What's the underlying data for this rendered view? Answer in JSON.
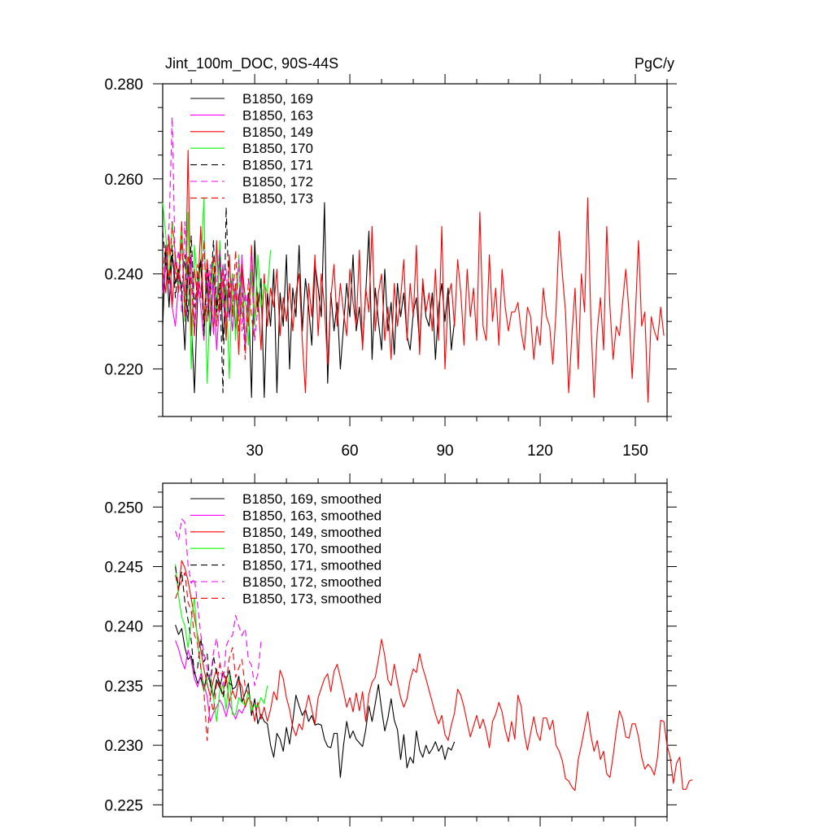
{
  "chart_data": [
    {
      "type": "line",
      "title": "Jint_100m_DOC, 90S-44S",
      "units": "PgC/y",
      "xlabel": "",
      "ylabel": "",
      "xlim": [
        1,
        160
      ],
      "ylim": [
        0.21,
        0.28
      ],
      "xticks": [
        30,
        60,
        90,
        120,
        150
      ],
      "xtick_labels": [
        "30",
        "60",
        "90",
        "120",
        "150"
      ],
      "yticks": [
        0.22,
        0.24,
        0.26,
        0.28
      ],
      "ytick_labels": [
        "0.220",
        "0.240",
        "0.260",
        "0.280"
      ],
      "legend_position": "top-left",
      "series": [
        {
          "name": "B1850, 169",
          "color": "#000000",
          "dash": "solid",
          "x_start": 1,
          "values": [
            0.229,
            0.246,
            0.233,
            0.244,
            0.238,
            0.241,
            0.236,
            0.224,
            0.242,
            0.231,
            0.215,
            0.235,
            0.243,
            0.229,
            0.238,
            0.227,
            0.24,
            0.233,
            0.244,
            0.226,
            0.237,
            0.231,
            0.24,
            0.228,
            0.235,
            0.242,
            0.224,
            0.236,
            0.214,
            0.247,
            0.232,
            0.239,
            0.214,
            0.236,
            0.229,
            0.241,
            0.215,
            0.236,
            0.229,
            0.244,
            0.22,
            0.237,
            0.231,
            0.246,
            0.228,
            0.239,
            0.233,
            0.225,
            0.242,
            0.237,
            0.231,
            0.255,
            0.217,
            0.236,
            0.228,
            0.234,
            0.22,
            0.229,
            0.238,
            0.231,
            0.244,
            0.228,
            0.233,
            0.225,
            0.236,
            0.249,
            0.222,
            0.237,
            0.23,
            0.224,
            0.241,
            0.228,
            0.234,
            0.223,
            0.238,
            0.231,
            0.236,
            0.227,
            0.224,
            0.232,
            0.235,
            0.225,
            0.238,
            0.231,
            0.229,
            0.236,
            0.222,
            0.233,
            0.238,
            0.23,
            0.237,
            0.224,
            0.23
          ]
        },
        {
          "name": "B1850, 163",
          "color": "#ff00ff",
          "dash": "solid",
          "x_start": 1,
          "values": [
            0.236,
            0.242,
            0.24,
            0.233,
            0.229,
            0.238,
            0.247,
            0.235,
            0.23,
            0.244,
            0.227,
            0.239,
            0.233,
            0.226,
            0.241,
            0.232,
            0.238,
            0.224,
            0.235,
            0.242,
            0.23,
            0.237,
            0.228,
            0.236,
            0.231,
            0.244,
            0.225,
            0.234,
            0.239,
            0.229
          ]
        },
        {
          "name": "B1850, 149",
          "color": "#ff0000",
          "dash": "solid",
          "x_start": 1,
          "values": [
            0.241,
            0.236,
            0.248,
            0.233,
            0.244,
            0.239,
            0.251,
            0.23,
            0.266,
            0.227,
            0.241,
            0.235,
            0.25,
            0.229,
            0.243,
            0.236,
            0.228,
            0.247,
            0.232,
            0.239,
            0.226,
            0.244,
            0.231,
            0.238,
            0.223,
            0.242,
            0.235,
            0.229,
            0.246,
            0.23,
            0.236,
            0.224,
            0.24,
            0.229,
            0.237,
            0.233,
            0.241,
            0.227,
            0.235,
            0.23,
            0.238,
            0.228,
            0.236,
            0.24,
            0.226,
            0.215,
            0.238,
            0.231,
            0.244,
            0.227,
            0.24,
            0.233,
            0.221,
            0.235,
            0.242,
            0.229,
            0.238,
            0.232,
            0.227,
            0.241,
            0.234,
            0.229,
            0.245,
            0.224,
            0.237,
            0.232,
            0.25,
            0.228,
            0.236,
            0.24,
            0.226,
            0.233,
            0.222,
            0.238,
            0.229,
            0.235,
            0.243,
            0.226,
            0.238,
            0.231,
            0.246,
            0.223,
            0.239,
            0.232,
            0.236,
            0.228,
            0.241,
            0.226,
            0.25,
            0.22,
            0.235,
            0.238,
            0.229,
            0.243,
            0.236,
            0.225,
            0.241,
            0.231,
            0.237,
            0.226,
            0.253,
            0.229,
            0.226,
            0.244,
            0.23,
            0.237,
            0.225,
            0.241,
            0.233,
            0.228,
            0.232,
            0.232,
            0.234,
            0.228,
            0.224,
            0.233,
            0.231,
            0.222,
            0.229,
            0.225,
            0.237,
            0.231,
            0.229,
            0.221,
            0.232,
            0.249,
            0.24,
            0.232,
            0.215,
            0.227,
            0.237,
            0.22,
            0.24,
            0.232,
            0.256,
            0.23,
            0.214,
            0.228,
            0.235,
            0.224,
            0.25,
            0.233,
            0.222,
            0.229,
            0.227,
            0.234,
            0.241,
            0.232,
            0.218,
            0.231,
            0.247,
            0.229,
            0.232,
            0.213,
            0.231,
            0.228,
            0.226,
            0.233,
            0.227
          ]
        },
        {
          "name": "B1850, 170",
          "color": "#00ff00",
          "dash": "solid",
          "x_start": 1,
          "values": [
            0.255,
            0.248,
            0.239,
            0.251,
            0.244,
            0.236,
            0.249,
            0.23,
            0.253,
            0.22,
            0.246,
            0.238,
            0.241,
            0.256,
            0.217,
            0.235,
            0.243,
            0.229,
            0.247,
            0.233,
            0.238,
            0.218,
            0.24,
            0.226,
            0.244,
            0.231,
            0.236,
            0.225,
            0.241,
            0.229,
            0.244,
            0.233,
            0.238,
            0.236,
            0.245
          ]
        },
        {
          "name": "B1850, 171",
          "color": "#000000",
          "dash": "dash",
          "x_start": 1,
          "values": [
            0.249,
            0.242,
            0.238,
            0.246,
            0.235,
            0.241,
            0.237,
            0.244,
            0.23,
            0.248,
            0.233,
            0.239,
            0.243,
            0.227,
            0.241,
            0.236,
            0.247,
            0.232,
            0.238,
            0.215,
            0.254,
            0.235
          ]
        },
        {
          "name": "B1850, 172",
          "color": "#ff00ff",
          "dash": "dash",
          "x_start": 1,
          "values": [
            0.236,
            0.241,
            0.25,
            0.273,
            0.24,
            0.245,
            0.232,
            0.251,
            0.237,
            0.244,
            0.229,
            0.24,
            0.235,
            0.247,
            0.231,
            0.242,
            0.227,
            0.238,
            0.245,
            0.233,
            0.241,
            0.23,
            0.239,
            0.235,
            0.243,
            0.228,
            0.236,
            0.232,
            0.244,
            0.226,
            0.233
          ]
        },
        {
          "name": "B1850, 173",
          "color": "#ff0000",
          "dash": "dash",
          "x_start": 1,
          "values": [
            0.24,
            0.246,
            0.238,
            0.251,
            0.243,
            0.236,
            0.248,
            0.231,
            0.244,
            0.239,
            0.227,
            0.242,
            0.235,
            0.247,
            0.23,
            0.238,
            0.244,
            0.229,
            0.236,
            0.241,
            0.227,
            0.238,
            0.233,
            0.245,
            0.228,
            0.236,
            0.222,
            0.239,
            0.231,
            0.226
          ]
        }
      ]
    },
    {
      "type": "line",
      "title": "",
      "xlabel": "",
      "ylabel": "",
      "xlim": [
        1,
        160
      ],
      "ylim": [
        0.224,
        0.252
      ],
      "xticks": [
        30,
        60,
        90,
        120,
        150
      ],
      "xtick_labels": [],
      "yticks": [
        0.225,
        0.23,
        0.235,
        0.24,
        0.245,
        0.25
      ],
      "ytick_labels": [
        "0.225",
        "0.230",
        "0.235",
        "0.240",
        "0.245",
        "0.250"
      ],
      "legend_position": "top-left",
      "series": [
        {
          "name": "B1850, 169, smoothed",
          "color": "#000000",
          "dash": "solid",
          "x_start": 5,
          "values": [
            0.2401,
            0.2393,
            0.2398,
            0.2382,
            0.2372,
            0.2375,
            0.2362,
            0.2352,
            0.2357,
            0.2346,
            0.2361,
            0.2352,
            0.234,
            0.2355,
            0.2348,
            0.2361,
            0.2355,
            0.2363,
            0.2347,
            0.2349,
            0.2358,
            0.2336,
            0.2344,
            0.2352,
            0.2325,
            0.2339,
            0.2318,
            0.2326,
            0.232,
            0.2318,
            0.23,
            0.229,
            0.231,
            0.2305,
            0.2295,
            0.2315,
            0.2301,
            0.232,
            0.2342,
            0.2333,
            0.2325,
            0.233,
            0.232,
            0.2325,
            0.2317,
            0.2318,
            0.2317,
            0.2305,
            0.2299,
            0.2298,
            0.231,
            0.231,
            0.2273,
            0.23,
            0.232,
            0.2306,
            0.2312,
            0.2305,
            0.2302,
            0.2299,
            0.2313,
            0.2333,
            0.232,
            0.2335,
            0.2351,
            0.233,
            0.2312,
            0.2323,
            0.2339,
            0.2321,
            0.2313,
            0.2288,
            0.2309,
            0.2281,
            0.229,
            0.2285,
            0.2312,
            0.2296,
            0.229,
            0.23,
            0.2293,
            0.2297,
            0.2303,
            0.2295,
            0.23,
            0.2288,
            0.2298,
            0.2296,
            0.2303
          ]
        },
        {
          "name": "B1850, 163, smoothed",
          "color": "#ff00ff",
          "dash": "solid",
          "x_start": 5,
          "values": [
            0.2388,
            0.2381,
            0.2371,
            0.2364,
            0.238,
            0.2371,
            0.2356,
            0.2349,
            0.236,
            0.2351,
            0.2341,
            0.232,
            0.2327,
            0.2332,
            0.2338,
            0.2333,
            0.2324,
            0.2336,
            0.2328,
            0.2322,
            0.233,
            0.2327,
            0.2333
          ]
        },
        {
          "name": "B1850, 149, smoothed",
          "color": "#ff0000",
          "dash": "solid",
          "x_start": 5,
          "values": [
            0.2423,
            0.243,
            0.2455,
            0.2449,
            0.2438,
            0.2423,
            0.2408,
            0.2392,
            0.238,
            0.2364,
            0.2352,
            0.2341,
            0.2355,
            0.2364,
            0.2348,
            0.2343,
            0.2358,
            0.2336,
            0.2346,
            0.2339,
            0.2355,
            0.2349,
            0.2332,
            0.234,
            0.2336,
            0.232,
            0.2336,
            0.2322,
            0.2332,
            0.232,
            0.233,
            0.2345,
            0.2338,
            0.2363,
            0.2356,
            0.234,
            0.233,
            0.2315,
            0.2308,
            0.2318,
            0.2313,
            0.233,
            0.2342,
            0.233,
            0.2318,
            0.234,
            0.2348,
            0.2356,
            0.236,
            0.2345,
            0.2362,
            0.2368,
            0.2357,
            0.2345,
            0.2332,
            0.234,
            0.2328,
            0.2344,
            0.2329,
            0.2345,
            0.232,
            0.2343,
            0.2353,
            0.2357,
            0.2372,
            0.2389,
            0.2375,
            0.2355,
            0.235,
            0.2368,
            0.2353,
            0.234,
            0.2332,
            0.2339,
            0.2355,
            0.2364,
            0.2361,
            0.2377,
            0.2365,
            0.2356,
            0.2346,
            0.2336,
            0.2326,
            0.2318,
            0.2325,
            0.2309,
            0.2304,
            0.2317,
            0.2327,
            0.2347,
            0.2342,
            0.2332,
            0.2319,
            0.2307,
            0.2316,
            0.2325,
            0.2314,
            0.2322,
            0.2312,
            0.2298,
            0.232,
            0.2326,
            0.2336,
            0.2328,
            0.2313,
            0.2303,
            0.232,
            0.2305,
            0.2342,
            0.2333,
            0.231,
            0.2296,
            0.231,
            0.2324,
            0.231,
            0.2304,
            0.2323,
            0.2323,
            0.2313,
            0.2321,
            0.23,
            0.2295,
            0.2287,
            0.2272,
            0.227,
            0.2265,
            0.2262,
            0.2288,
            0.23,
            0.2314,
            0.2328,
            0.2308,
            0.2295,
            0.2304,
            0.2288,
            0.2295,
            0.2276,
            0.2273,
            0.2291,
            0.2312,
            0.2329,
            0.2322,
            0.2307,
            0.2306,
            0.2318,
            0.2318,
            0.2307,
            0.229,
            0.228,
            0.2284,
            0.2281,
            0.2275,
            0.229,
            0.2321,
            0.232,
            0.23,
            0.229,
            0.2268,
            0.2285,
            0.229,
            0.2263,
            0.2263,
            0.227,
            0.2271
          ]
        },
        {
          "name": "B1850, 170, smoothed",
          "color": "#00ff00",
          "dash": "solid",
          "x_start": 5,
          "values": [
            0.2452,
            0.2425,
            0.2408,
            0.24,
            0.2382,
            0.2405,
            0.2424,
            0.2386,
            0.2366,
            0.2345,
            0.2355,
            0.236,
            0.234,
            0.232,
            0.2346,
            0.2351,
            0.233,
            0.2358,
            0.2326,
            0.2326,
            0.234,
            0.2336,
            0.2334,
            0.2345,
            0.2329,
            0.2334,
            0.2332,
            0.234,
            0.2335,
            0.235
          ]
        },
        {
          "name": "B1850, 171, smoothed",
          "color": "#000000",
          "dash": "dash",
          "x_start": 5,
          "values": [
            0.245,
            0.2432,
            0.2446,
            0.242,
            0.2405,
            0.2388,
            0.236,
            0.2365,
            0.239,
            0.237,
            0.2377,
            0.235,
            0.2375,
            0.236,
            0.2352,
            0.234,
            0.2355,
            0.2352,
            0.235
          ]
        },
        {
          "name": "B1850, 172, smoothed",
          "color": "#ff00ff",
          "dash": "dash",
          "x_start": 5,
          "values": [
            0.248,
            0.2472,
            0.249,
            0.2487,
            0.2451,
            0.2436,
            0.244,
            0.2418,
            0.2393,
            0.2378,
            0.2365,
            0.2354,
            0.2378,
            0.239,
            0.237,
            0.235,
            0.2383,
            0.239,
            0.2392,
            0.2409,
            0.24,
            0.2392,
            0.2398,
            0.2372,
            0.2367,
            0.235,
            0.236,
            0.2387
          ]
        },
        {
          "name": "B1850, 173, smoothed",
          "color": "#ff0000",
          "dash": "dash",
          "x_start": 5,
          "values": [
            0.2443,
            0.243,
            0.2438,
            0.2445,
            0.242,
            0.2413,
            0.2393,
            0.2385,
            0.2365,
            0.2345,
            0.2304,
            0.234,
            0.2328,
            0.2352,
            0.2368,
            0.2361,
            0.2353,
            0.2373,
            0.2382,
            0.2357,
            0.2365,
            0.2372,
            0.2349,
            0.2343
          ]
        }
      ]
    }
  ]
}
